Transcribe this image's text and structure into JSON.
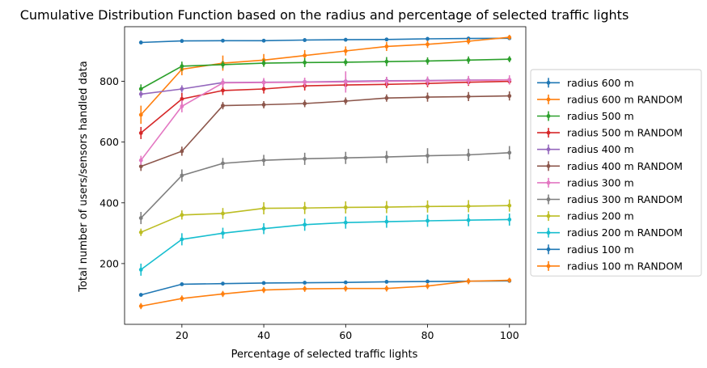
{
  "chart_data": {
    "type": "line",
    "title": "Cumulative Distribution Function based on the radius and percentage of selected traffic lights",
    "xlabel": "Percentage of selected traffic lights",
    "ylabel": "Total number of users/sensors handled data",
    "xlim": [
      6,
      104
    ],
    "ylim": [
      0,
      980
    ],
    "xticks": [
      20,
      40,
      60,
      80,
      100
    ],
    "yticks": [
      200,
      400,
      600,
      800
    ],
    "grid": false,
    "legend_position": "right-outside",
    "x": [
      10,
      20,
      30,
      40,
      50,
      60,
      70,
      80,
      90,
      100
    ],
    "series": [
      {
        "name": "radius 600 m",
        "color": "#1f77b4",
        "values": [
          928,
          933,
          934,
          934,
          936,
          937,
          938,
          940,
          941,
          942
        ],
        "errors": [
          6,
          6,
          6,
          6,
          6,
          6,
          6,
          6,
          6,
          6
        ]
      },
      {
        "name": "radius 600 m RANDOM",
        "color": "#ff7f0e",
        "values": [
          690,
          840,
          860,
          870,
          885,
          900,
          915,
          922,
          932,
          945
        ],
        "errors": [
          30,
          20,
          25,
          20,
          18,
          15,
          15,
          12,
          10,
          8
        ]
      },
      {
        "name": "radius 500 m",
        "color": "#2ca02c",
        "values": [
          775,
          850,
          855,
          860,
          862,
          863,
          865,
          867,
          870,
          873
        ],
        "errors": [
          15,
          15,
          12,
          12,
          15,
          12,
          15,
          12,
          12,
          10
        ]
      },
      {
        "name": "radius 500 m RANDOM",
        "color": "#d62728",
        "values": [
          630,
          742,
          770,
          775,
          785,
          788,
          790,
          793,
          797,
          800
        ],
        "errors": [
          20,
          20,
          15,
          15,
          15,
          15,
          12,
          12,
          12,
          10
        ]
      },
      {
        "name": "radius 400 m",
        "color": "#9467bd",
        "values": [
          758,
          775,
          796,
          797,
          798,
          800,
          802,
          803,
          804,
          805
        ],
        "errors": [
          12,
          12,
          10,
          10,
          12,
          12,
          12,
          10,
          10,
          10
        ]
      },
      {
        "name": "radius 400 m RANDOM",
        "color": "#8c564b",
        "values": [
          520,
          570,
          720,
          723,
          727,
          735,
          745,
          748,
          750,
          752
        ],
        "errors": [
          15,
          15,
          12,
          12,
          12,
          12,
          12,
          15,
          15,
          15
        ]
      },
      {
        "name": "radius 300 m",
        "color": "#e377c2",
        "values": [
          540,
          718,
          795,
          796,
          797,
          798,
          800,
          801,
          803,
          805
        ],
        "errors": [
          15,
          20,
          15,
          15,
          15,
          35,
          15,
          15,
          15,
          15
        ]
      },
      {
        "name": "radius 300 m RANDOM",
        "color": "#7f7f7f",
        "values": [
          350,
          490,
          530,
          540,
          545,
          548,
          551,
          555,
          558,
          565
        ],
        "errors": [
          20,
          20,
          18,
          18,
          20,
          20,
          20,
          25,
          20,
          22
        ]
      },
      {
        "name": "radius 200 m",
        "color": "#bcbd22",
        "values": [
          303,
          360,
          365,
          382,
          383,
          385,
          386,
          388,
          389,
          391
        ],
        "errors": [
          12,
          15,
          18,
          20,
          20,
          20,
          20,
          20,
          20,
          20
        ]
      },
      {
        "name": "radius 200 m RANDOM",
        "color": "#17becf",
        "values": [
          180,
          280,
          300,
          315,
          328,
          335,
          338,
          341,
          343,
          345
        ],
        "errors": [
          20,
          20,
          18,
          18,
          20,
          20,
          20,
          20,
          20,
          20
        ]
      },
      {
        "name": "radius 100 m",
        "color": "#1f77b4",
        "values": [
          97,
          132,
          134,
          136,
          137,
          138,
          140,
          141,
          142,
          143
        ],
        "errors": [
          4,
          5,
          5,
          5,
          5,
          5,
          5,
          5,
          5,
          5
        ]
      },
      {
        "name": "radius 100 m RANDOM",
        "color": "#ff7f0e",
        "values": [
          60,
          85,
          100,
          113,
          117,
          118,
          118,
          126,
          142,
          145
        ],
        "errors": [
          10,
          10,
          10,
          10,
          10,
          10,
          10,
          10,
          10,
          8
        ]
      }
    ]
  }
}
